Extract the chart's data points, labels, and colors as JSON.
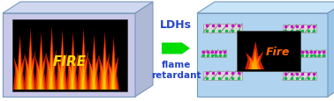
{
  "bg_color": "#ffffff",
  "cube_left_face_color": "#c8c8e8",
  "cube_left_top_color": "#d0d8f0",
  "cube_left_side_color": "#b0b8d8",
  "cube_right_face_color": "#b0d4f0",
  "cube_right_top_color": "#c8e4f8",
  "cube_right_side_color": "#98c4e8",
  "fire_box_color": "#000000",
  "arrow_color": "#00dd00",
  "ldh_text": "LDHs",
  "ldh_text_color": "#2244cc",
  "flame_text": "flame\nretardant",
  "flame_text_color": "#2244cc",
  "platelet_body_color": "#d8d8d8",
  "platelet_line_color": "#888888",
  "platelet_dot_magenta": "#cc00cc",
  "platelet_dot_green": "#00bb44",
  "figsize": [
    3.78,
    1.16
  ],
  "dpi": 100
}
